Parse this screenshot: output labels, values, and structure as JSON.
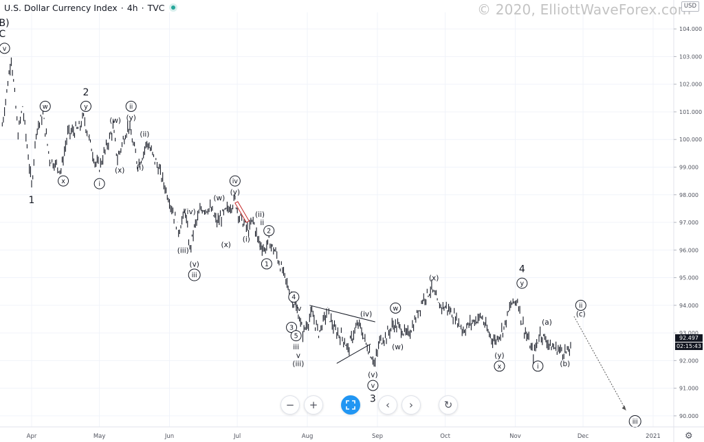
{
  "header": {
    "title": "U.S. Dollar Currency Index",
    "interval": "4h",
    "source": "TVC",
    "separator": "·"
  },
  "watermark": "© 2020, ElliottWaveForex.com",
  "currency_button": "USD",
  "price_tag": "92.497",
  "countdown_tag": "02:15:43",
  "colors": {
    "candle": "#131722",
    "accent": "#2196f3",
    "axis_text": "#50535e",
    "grid": "#f0f3fa",
    "triangle_line": "#131722",
    "red_box": "#c62828",
    "projection": "#555555"
  },
  "icons": {
    "zoom_out": "minus-icon",
    "zoom_in": "plus-icon",
    "reset_scale": "fit-icon",
    "scroll_left": "chevron-left-icon",
    "scroll_right": "chevron-right-icon",
    "reset_chart": "refresh-icon",
    "settings": "gear-icon"
  },
  "chart_data": {
    "type": "line",
    "style": "candlestick-like price series (4h bars)",
    "x_axis": {
      "ticks": [
        "Apr",
        "May",
        "Jun",
        "Jul",
        "Aug",
        "Sep",
        "Oct",
        "Nov",
        "Dec",
        "2021"
      ]
    },
    "y_axis": {
      "min": 89.6,
      "max": 104.6,
      "position": "right",
      "ticks": [
        "90.000",
        "91.000",
        "92.000",
        "93.000",
        "94.000",
        "95.000",
        "96.000",
        "97.000",
        "98.000",
        "99.000",
        "100.000",
        "101.000",
        "102.000",
        "103.000",
        "104.000"
      ]
    },
    "grid": true,
    "series": [
      {
        "points": [
          [
            "2020-03-19",
            100.5
          ],
          [
            "2020-03-23",
            103.0
          ],
          [
            "2020-03-26",
            100.2
          ],
          [
            "2020-03-28",
            101.2
          ],
          [
            "2020-04-01",
            98.3
          ],
          [
            "2020-04-03",
            100.3
          ],
          [
            "2020-04-06",
            100.9
          ],
          [
            "2020-04-09",
            99.3
          ],
          [
            "2020-04-14",
            98.9
          ],
          [
            "2020-04-17",
            100.2
          ],
          [
            "2020-04-22",
            100.4
          ],
          [
            "2020-04-24",
            100.8
          ],
          [
            "2020-04-29",
            99.2
          ],
          [
            "2020-05-01",
            99.0
          ],
          [
            "2020-05-04",
            99.7
          ],
          [
            "2020-05-07",
            100.4
          ],
          [
            "2020-05-09",
            99.3
          ],
          [
            "2020-05-12",
            100.1
          ],
          [
            "2020-05-14",
            100.5
          ],
          [
            "2020-05-18",
            99.1
          ],
          [
            "2020-05-20",
            99.4
          ],
          [
            "2020-05-22",
            99.9
          ],
          [
            "2020-05-27",
            99.0
          ],
          [
            "2020-06-01",
            97.8
          ],
          [
            "2020-06-05",
            96.7
          ],
          [
            "2020-06-08",
            97.4
          ],
          [
            "2020-06-10",
            96.0
          ],
          [
            "2020-06-12",
            96.8
          ],
          [
            "2020-06-15",
            97.5
          ],
          [
            "2020-06-19",
            97.5
          ],
          [
            "2020-06-22",
            97.0
          ],
          [
            "2020-06-25",
            97.3
          ],
          [
            "2020-06-30",
            97.8
          ],
          [
            "2020-07-02",
            97.2
          ],
          [
            "2020-07-06",
            96.7
          ],
          [
            "2020-07-08",
            97.1
          ],
          [
            "2020-07-10",
            96.4
          ],
          [
            "2020-07-13",
            96.0
          ],
          [
            "2020-07-15",
            96.3
          ],
          [
            "2020-07-18",
            95.9
          ],
          [
            "2020-07-22",
            95.0
          ],
          [
            "2020-07-25",
            94.3
          ],
          [
            "2020-07-28",
            93.7
          ],
          [
            "2020-07-30",
            93.0
          ],
          [
            "2020-08-03",
            93.7
          ],
          [
            "2020-08-06",
            93.0
          ],
          [
            "2020-08-10",
            93.8
          ],
          [
            "2020-08-13",
            93.1
          ],
          [
            "2020-08-17",
            92.8
          ],
          [
            "2020-08-19",
            92.4
          ],
          [
            "2020-08-22",
            93.1
          ],
          [
            "2020-08-24",
            93.3
          ],
          [
            "2020-08-27",
            92.6
          ],
          [
            "2020-08-31",
            91.9
          ],
          [
            "2020-09-02",
            92.7
          ],
          [
            "2020-09-05",
            92.9
          ],
          [
            "2020-09-08",
            93.3
          ],
          [
            "2020-09-11",
            93.2
          ],
          [
            "2020-09-14",
            92.9
          ],
          [
            "2020-09-17",
            93.3
          ],
          [
            "2020-09-21",
            94.2
          ],
          [
            "2020-09-25",
            94.6
          ],
          [
            "2020-09-28",
            94.0
          ],
          [
            "2020-10-02",
            93.9
          ],
          [
            "2020-10-06",
            93.5
          ],
          [
            "2020-10-09",
            93.1
          ],
          [
            "2020-10-13",
            93.4
          ],
          [
            "2020-10-17",
            93.6
          ],
          [
            "2020-10-20",
            93.0
          ],
          [
            "2020-10-23",
            92.7
          ],
          [
            "2020-10-27",
            93.2
          ],
          [
            "2020-10-30",
            94.0
          ],
          [
            "2020-11-02",
            94.2
          ],
          [
            "2020-11-04",
            93.4
          ],
          [
            "2020-11-09",
            92.2
          ],
          [
            "2020-11-12",
            93.0
          ],
          [
            "2020-11-14",
            92.8
          ],
          [
            "2020-11-17",
            92.5
          ],
          [
            "2020-11-20",
            92.4
          ],
          [
            "2020-11-24",
            92.3
          ],
          [
            "2020-11-26",
            92.5
          ]
        ]
      }
    ],
    "projection": {
      "from": [
        "2020-11-27",
        93.6
      ],
      "to": [
        "2020-12-20",
        90.2
      ],
      "style": "dotted arrow"
    },
    "annotations": [
      {
        "label": "(B)",
        "date": "2020-03-19",
        "value": 104.2,
        "circled": false
      },
      {
        "label": "C",
        "date": "2020-03-19",
        "value": 103.8,
        "circled": false
      },
      {
        "label": "v",
        "date": "2020-03-20",
        "value": 103.3,
        "circled": true
      },
      {
        "label": "1",
        "date": "2020-04-01",
        "value": 97.8,
        "circled": false
      },
      {
        "label": "w",
        "date": "2020-04-07",
        "value": 101.2,
        "circled": true
      },
      {
        "label": "x",
        "date": "2020-04-15",
        "value": 98.5,
        "circled": true
      },
      {
        "label": "2",
        "date": "2020-04-25",
        "value": 101.7,
        "circled": false
      },
      {
        "label": "y",
        "date": "2020-04-25",
        "value": 101.2,
        "circled": true
      },
      {
        "label": "i",
        "date": "2020-05-01",
        "value": 98.4,
        "circled": true
      },
      {
        "label": "(w)",
        "date": "2020-05-08",
        "value": 100.7,
        "circled": false
      },
      {
        "label": "(x)",
        "date": "2020-05-10",
        "value": 98.9,
        "circled": false
      },
      {
        "label": "ii",
        "date": "2020-05-15",
        "value": 101.2,
        "circled": true
      },
      {
        "label": "(y)",
        "date": "2020-05-15",
        "value": 100.8,
        "circled": false
      },
      {
        "label": "(ii)",
        "date": "2020-05-21",
        "value": 100.2,
        "circled": false
      },
      {
        "label": "(i)",
        "date": "2020-05-19",
        "value": 99.0,
        "circled": false
      },
      {
        "label": "(iv)",
        "date": "2020-06-10",
        "value": 97.4,
        "circled": false
      },
      {
        "label": "(iii)",
        "date": "2020-06-07",
        "value": 96.0,
        "circled": false
      },
      {
        "label": "(v)",
        "date": "2020-06-12",
        "value": 95.5,
        "circled": false
      },
      {
        "label": "iii",
        "date": "2020-06-12",
        "value": 95.1,
        "circled": true
      },
      {
        "label": "(w)",
        "date": "2020-06-23",
        "value": 97.9,
        "circled": false
      },
      {
        "label": "(x)",
        "date": "2020-06-26",
        "value": 96.2,
        "circled": false
      },
      {
        "label": "iv",
        "date": "2020-06-30",
        "value": 98.5,
        "circled": true
      },
      {
        "label": "(y)",
        "date": "2020-06-30",
        "value": 98.1,
        "circled": false
      },
      {
        "label": "(i)",
        "date": "2020-07-05",
        "value": 96.4,
        "circled": false
      },
      {
        "label": "(ii)",
        "date": "2020-07-11",
        "value": 97.3,
        "circled": false
      },
      {
        "label": "ii",
        "date": "2020-07-12",
        "value": 97.0,
        "circled": false
      },
      {
        "label": "2",
        "date": "2020-07-15",
        "value": 96.7,
        "circled": true
      },
      {
        "label": "i",
        "date": "2020-07-11",
        "value": 96.1,
        "circled": false
      },
      {
        "label": "1",
        "date": "2020-07-14",
        "value": 95.5,
        "circled": true
      },
      {
        "label": "4",
        "date": "2020-07-26",
        "value": 94.3,
        "circled": true
      },
      {
        "label": "iv",
        "date": "2020-07-28",
        "value": 93.9,
        "circled": false
      },
      {
        "label": "3",
        "date": "2020-07-25",
        "value": 93.2,
        "circled": true
      },
      {
        "label": "5",
        "date": "2020-07-27",
        "value": 92.9,
        "circled": true
      },
      {
        "label": "iii",
        "date": "2020-07-27",
        "value": 92.5,
        "circled": false
      },
      {
        "label": "v",
        "date": "2020-07-28",
        "value": 92.2,
        "circled": false
      },
      {
        "label": "(iii)",
        "date": "2020-07-28",
        "value": 91.9,
        "circled": false
      },
      {
        "label": "(iv)",
        "date": "2020-08-27",
        "value": 93.7,
        "circled": false
      },
      {
        "label": "w",
        "date": "2020-09-09",
        "value": 93.9,
        "circled": true
      },
      {
        "label": "(w)",
        "date": "2020-09-10",
        "value": 92.5,
        "circled": false
      },
      {
        "label": "(v)",
        "date": "2020-08-30",
        "value": 91.5,
        "circled": false
      },
      {
        "label": "v",
        "date": "2020-08-30",
        "value": 91.1,
        "circled": true
      },
      {
        "label": "3",
        "date": "2020-08-30",
        "value": 90.6,
        "circled": false
      },
      {
        "label": "(x)",
        "date": "2020-09-26",
        "value": 95.0,
        "circled": false
      },
      {
        "label": "4",
        "date": "2020-11-04",
        "value": 95.3,
        "circled": false
      },
      {
        "label": "y",
        "date": "2020-11-04",
        "value": 94.8,
        "circled": true
      },
      {
        "label": "(y)",
        "date": "2020-10-25",
        "value": 92.2,
        "circled": false
      },
      {
        "label": "x",
        "date": "2020-10-25",
        "value": 91.8,
        "circled": true
      },
      {
        "label": "i",
        "date": "2020-11-11",
        "value": 91.8,
        "circled": true
      },
      {
        "label": "(a)",
        "date": "2020-11-15",
        "value": 93.4,
        "circled": false
      },
      {
        "label": "(b)",
        "date": "2020-11-23",
        "value": 91.9,
        "circled": false
      },
      {
        "label": "ii",
        "date": "2020-11-30",
        "value": 94.0,
        "circled": true
      },
      {
        "label": "(c)",
        "date": "2020-11-30",
        "value": 93.7,
        "circled": false
      },
      {
        "label": "iii",
        "date": "2020-12-24",
        "value": 89.8,
        "circled": true
      }
    ],
    "triangle_lines": [
      [
        [
          "2020-08-02",
          94.0
        ],
        [
          "2020-08-31",
          93.4
        ]
      ],
      [
        [
          "2020-08-14",
          91.9
        ],
        [
          "2020-08-29",
          92.6
        ]
      ]
    ],
    "red_box": [
      [
        "2020-06-30",
        97.7
      ],
      [
        "2020-07-05",
        97.0
      ]
    ]
  }
}
